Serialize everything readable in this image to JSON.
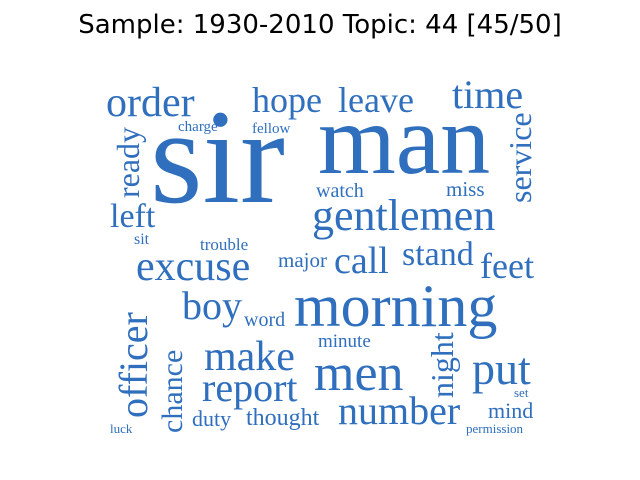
{
  "title": "Sample: 1930-2010 Topic: 44 [45/50]",
  "word_color": "#2f6fbd",
  "words": {
    "sir": "sir",
    "man": "man",
    "morning": "morning",
    "gentlemen": "gentlemen",
    "excuse": "excuse",
    "order": "order",
    "time": "time",
    "hope": "hope",
    "leave": "leave",
    "men": "men",
    "make": "make",
    "report": "report",
    "number": "number",
    "call": "call",
    "stand": "stand",
    "feet": "feet",
    "boy": "boy",
    "put": "put",
    "officer": "officer",
    "service": "service",
    "ready": "ready",
    "left": "left",
    "night": "night",
    "chance": "chance",
    "mind": "mind",
    "thought": "thought",
    "duty": "duty",
    "major": "major",
    "watch": "watch",
    "miss": "miss",
    "word": "word",
    "minute": "minute",
    "charge": "charge",
    "fellow": "fellow",
    "trouble": "trouble",
    "sit": "sit",
    "set": "set",
    "luck": "luck",
    "permission": "permission"
  }
}
